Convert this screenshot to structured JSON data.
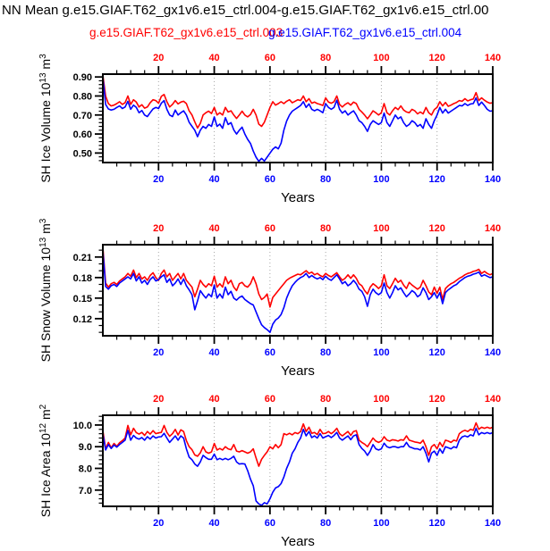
{
  "title": "NN Mean g.e15.GIAF.T62_gx1v6.e15_ctrl.004-g.e15.GIAF.T62_gx1v6.e15_ctrl.00",
  "legend": {
    "position": "top",
    "entries": [
      {
        "label": "g.e15.GIAF.T62_gx1v6.e15_ctrl.003",
        "color": "#ff0000"
      },
      {
        "label": "g.e15.GIAF.T62_gx1v6.e15_ctrl.004",
        "color": "#0000ff"
      }
    ]
  },
  "colors": {
    "frame": "#000000",
    "grid": "#a6a6a6",
    "top_axis_labels": "#ff0000",
    "bottom_axis_labels": "#0000ff"
  },
  "chart_data": [
    {
      "type": "line",
      "title": "",
      "xlabel": "Years",
      "ylabel": "SH Ice Volume 10^13 m^3",
      "ylabel_segments": [
        {
          "t": "SH Ice Volume 10"
        },
        {
          "t": "13",
          "sup": true
        },
        {
          "t": " m"
        },
        {
          "t": "3",
          "sup": true
        }
      ],
      "xlim": [
        0,
        140
      ],
      "ylim": [
        0.45,
        0.915
      ],
      "x_ticks": [
        20,
        40,
        60,
        80,
        100,
        120,
        140
      ],
      "x_minor_step": 5,
      "grid_x": [
        20,
        40,
        60,
        80,
        100,
        120
      ],
      "y_ticks": [
        0.5,
        0.6,
        0.7,
        0.8,
        0.9
      ],
      "y_tick_labels": [
        "0.50",
        "0.60",
        "0.70",
        "0.80",
        "0.90"
      ],
      "y_minor_step": 0.02,
      "grid": "x-dotted",
      "series": [
        {
          "name": "g.e15.GIAF.T62_gx1v6.e15_ctrl.003",
          "color": "#ff0000",
          "x_start": 0,
          "x_step": 1,
          "y": [
            0.91,
            0.8,
            0.76,
            0.748,
            0.752,
            0.76,
            0.77,
            0.756,
            0.765,
            0.8,
            0.756,
            0.78,
            0.768,
            0.742,
            0.754,
            0.736,
            0.742,
            0.764,
            0.78,
            0.776,
            0.762,
            0.798,
            0.808,
            0.77,
            0.742,
            0.756,
            0.776,
            0.758,
            0.768,
            0.772,
            0.76,
            0.722,
            0.7,
            0.664,
            0.632,
            0.656,
            0.7,
            0.712,
            0.72,
            0.708,
            0.74,
            0.7,
            0.712,
            0.7,
            0.74,
            0.716,
            0.722,
            0.7,
            0.682,
            0.7,
            0.72,
            0.7,
            0.69,
            0.702,
            0.73,
            0.7,
            0.652,
            0.64,
            0.662,
            0.7,
            0.74,
            0.77,
            0.752,
            0.76,
            0.77,
            0.76,
            0.772,
            0.78,
            0.764,
            0.772,
            0.78,
            0.776,
            0.8,
            0.77,
            0.786,
            0.762,
            0.768,
            0.76,
            0.756,
            0.75,
            0.79,
            0.768,
            0.762,
            0.77,
            0.8,
            0.756,
            0.742,
            0.756,
            0.764,
            0.752,
            0.768,
            0.76,
            0.73,
            0.716,
            0.7,
            0.68,
            0.7,
            0.722,
            0.712,
            0.7,
            0.712,
            0.76,
            0.712,
            0.7,
            0.722,
            0.74,
            0.728,
            0.748,
            0.726,
            0.716,
            0.712,
            0.73,
            0.722,
            0.706,
            0.716,
            0.706,
            0.74,
            0.712,
            0.7,
            0.728,
            0.74,
            0.77,
            0.748,
            0.766,
            0.746,
            0.752,
            0.76,
            0.766,
            0.776,
            0.772,
            0.786,
            0.774,
            0.78,
            0.784,
            0.818,
            0.776,
            0.79,
            0.778,
            0.768,
            0.762,
            0.764
          ]
        },
        {
          "name": "g.e15.GIAF.T62_gx1v6.e15_ctrl.004",
          "color": "#0000ff",
          "x_start": 0,
          "x_step": 1,
          "y": [
            0.9,
            0.756,
            0.732,
            0.726,
            0.73,
            0.74,
            0.748,
            0.734,
            0.742,
            0.772,
            0.73,
            0.752,
            0.74,
            0.712,
            0.724,
            0.7,
            0.692,
            0.712,
            0.732,
            0.74,
            0.734,
            0.762,
            0.776,
            0.73,
            0.7,
            0.692,
            0.726,
            0.7,
            0.712,
            0.722,
            0.7,
            0.662,
            0.64,
            0.62,
            0.586,
            0.62,
            0.64,
            0.63,
            0.65,
            0.64,
            0.69,
            0.64,
            0.652,
            0.63,
            0.686,
            0.65,
            0.66,
            0.622,
            0.6,
            0.62,
            0.636,
            0.6,
            0.572,
            0.55,
            0.51,
            0.478,
            0.456,
            0.472,
            0.458,
            0.478,
            0.5,
            0.52,
            0.532,
            0.522,
            0.552,
            0.62,
            0.668,
            0.7,
            0.72,
            0.73,
            0.74,
            0.75,
            0.77,
            0.74,
            0.758,
            0.73,
            0.722,
            0.73,
            0.722,
            0.712,
            0.76,
            0.74,
            0.73,
            0.74,
            0.778,
            0.73,
            0.71,
            0.722,
            0.7,
            0.712,
            0.722,
            0.7,
            0.67,
            0.66,
            0.64,
            0.614,
            0.65,
            0.67,
            0.66,
            0.65,
            0.66,
            0.71,
            0.66,
            0.64,
            0.67,
            0.7,
            0.68,
            0.69,
            0.66,
            0.64,
            0.65,
            0.67,
            0.66,
            0.64,
            0.65,
            0.63,
            0.68,
            0.65,
            0.63,
            0.67,
            0.7,
            0.74,
            0.71,
            0.73,
            0.71,
            0.72,
            0.73,
            0.74,
            0.75,
            0.748,
            0.76,
            0.75,
            0.758,
            0.76,
            0.79,
            0.75,
            0.768,
            0.75,
            0.73,
            0.72,
            0.722
          ]
        }
      ]
    },
    {
      "type": "line",
      "title": "",
      "xlabel": "Years",
      "ylabel": "SH Snow Volume 10^13 m^3",
      "ylabel_segments": [
        {
          "t": "SH Snow Volume 10"
        },
        {
          "t": "13",
          "sup": true
        },
        {
          "t": " m"
        },
        {
          "t": "3",
          "sup": true
        }
      ],
      "xlim": [
        0,
        140
      ],
      "ylim": [
        0.095,
        0.228
      ],
      "x_ticks": [
        20,
        40,
        60,
        80,
        100,
        120,
        140
      ],
      "x_minor_step": 5,
      "grid_x": [
        20,
        40,
        60,
        80,
        100,
        120
      ],
      "y_ticks": [
        0.12,
        0.15,
        0.18,
        0.21
      ],
      "y_tick_labels": [
        "0.12",
        "0.15",
        "0.18",
        "0.21"
      ],
      "y_minor_step": 0.01,
      "grid": "x-dotted",
      "series": [
        {
          "name": "g.e15.GIAF.T62_gx1v6.e15_ctrl.003",
          "color": "#ff0000",
          "x_start": 0,
          "x_step": 1,
          "y": [
            0.225,
            0.172,
            0.166,
            0.171,
            0.173,
            0.17,
            0.175,
            0.178,
            0.181,
            0.186,
            0.182,
            0.191,
            0.18,
            0.186,
            0.178,
            0.181,
            0.176,
            0.183,
            0.187,
            0.18,
            0.176,
            0.186,
            0.191,
            0.181,
            0.186,
            0.176,
            0.181,
            0.186,
            0.178,
            0.186,
            0.176,
            0.171,
            0.166,
            0.152,
            0.163,
            0.176,
            0.17,
            0.166,
            0.171,
            0.168,
            0.182,
            0.166,
            0.171,
            0.166,
            0.181,
            0.171,
            0.176,
            0.166,
            0.161,
            0.171,
            0.173,
            0.168,
            0.166,
            0.171,
            0.181,
            0.171,
            0.156,
            0.148,
            0.151,
            0.156,
            0.137,
            0.151,
            0.156,
            0.161,
            0.166,
            0.171,
            0.176,
            0.179,
            0.181,
            0.183,
            0.185,
            0.184,
            0.187,
            0.19,
            0.186,
            0.188,
            0.184,
            0.186,
            0.183,
            0.181,
            0.186,
            0.183,
            0.181,
            0.184,
            0.187,
            0.181,
            0.176,
            0.179,
            0.184,
            0.179,
            0.184,
            0.179,
            0.171,
            0.168,
            0.161,
            0.156,
            0.166,
            0.171,
            0.168,
            0.164,
            0.168,
            0.184,
            0.168,
            0.164,
            0.171,
            0.179,
            0.173,
            0.176,
            0.169,
            0.164,
            0.173,
            0.169,
            0.166,
            0.163,
            0.166,
            0.176,
            0.168,
            0.159,
            0.155,
            0.166,
            0.157,
            0.166,
            0.148,
            0.164,
            0.168,
            0.171,
            0.173,
            0.176,
            0.179,
            0.181,
            0.184,
            0.186,
            0.187,
            0.189,
            0.19,
            0.192,
            0.186,
            0.189,
            0.186,
            0.184,
            0.186
          ]
        },
        {
          "name": "g.e15.GIAF.T62_gx1v6.e15_ctrl.004",
          "color": "#0000ff",
          "x_start": 0,
          "x_step": 1,
          "y": [
            0.22,
            0.167,
            0.163,
            0.168,
            0.17,
            0.167,
            0.172,
            0.175,
            0.178,
            0.181,
            0.178,
            0.186,
            0.175,
            0.181,
            0.172,
            0.176,
            0.17,
            0.177,
            0.181,
            0.175,
            0.177,
            0.181,
            0.184,
            0.173,
            0.178,
            0.168,
            0.172,
            0.178,
            0.17,
            0.178,
            0.168,
            0.162,
            0.155,
            0.133,
            0.146,
            0.161,
            0.155,
            0.15,
            0.156,
            0.152,
            0.169,
            0.15,
            0.156,
            0.15,
            0.166,
            0.155,
            0.16,
            0.15,
            0.147,
            0.151,
            0.153,
            0.148,
            0.145,
            0.142,
            0.14,
            0.13,
            0.12,
            0.111,
            0.107,
            0.104,
            0.1,
            0.112,
            0.118,
            0.121,
            0.126,
            0.136,
            0.15,
            0.16,
            0.168,
            0.173,
            0.177,
            0.18,
            0.182,
            0.186,
            0.18,
            0.183,
            0.18,
            0.178,
            0.18,
            0.177,
            0.182,
            0.178,
            0.176,
            0.18,
            0.184,
            0.178,
            0.171,
            0.174,
            0.168,
            0.171,
            0.176,
            0.171,
            0.163,
            0.16,
            0.152,
            0.138,
            0.155,
            0.163,
            0.158,
            0.155,
            0.158,
            0.172,
            0.158,
            0.15,
            0.158,
            0.168,
            0.162,
            0.165,
            0.158,
            0.152,
            0.156,
            0.161,
            0.158,
            0.152,
            0.155,
            0.165,
            0.158,
            0.148,
            0.152,
            0.158,
            0.15,
            0.158,
            0.142,
            0.158,
            0.162,
            0.165,
            0.168,
            0.17,
            0.174,
            0.177,
            0.18,
            0.182,
            0.183,
            0.185,
            0.186,
            0.188,
            0.182,
            0.184,
            0.182,
            0.18,
            0.181
          ]
        }
      ]
    },
    {
      "type": "line",
      "title": "",
      "xlabel": "Years",
      "ylabel": "SH Ice Area 10^12 m^2",
      "ylabel_segments": [
        {
          "t": "SH Ice Area 10"
        },
        {
          "t": "12",
          "sup": true
        },
        {
          "t": " m"
        },
        {
          "t": "2",
          "sup": true
        }
      ],
      "xlim": [
        0,
        140
      ],
      "ylim": [
        6.25,
        10.45
      ],
      "x_ticks": [
        20,
        40,
        60,
        80,
        100,
        120,
        140
      ],
      "x_minor_step": 5,
      "grid_x": [
        20,
        40,
        60,
        80,
        100,
        120
      ],
      "y_ticks": [
        7,
        8,
        9,
        10
      ],
      "y_tick_labels": [
        "7.0",
        "8.0",
        "9.0",
        "10.0"
      ],
      "y_minor_step": 0.2,
      "grid": "x-dotted",
      "series": [
        {
          "name": "g.e15.GIAF.T62_gx1v6.e15_ctrl.003",
          "color": "#ff0000",
          "x_start": 0,
          "x_step": 1,
          "y": [
            9.75,
            8.9,
            9.2,
            8.95,
            9.15,
            9.02,
            9.18,
            9.28,
            9.4,
            9.98,
            9.55,
            9.85,
            9.65,
            9.58,
            9.66,
            9.52,
            9.7,
            9.58,
            9.74,
            9.6,
            9.64,
            9.66,
            9.98,
            9.66,
            9.48,
            9.6,
            9.8,
            9.54,
            9.78,
            9.7,
            9.28,
            9.0,
            8.86,
            8.62,
            8.56,
            8.72,
            9.0,
            8.76,
            8.7,
            8.76,
            9.15,
            8.85,
            8.92,
            8.85,
            9.0,
            8.9,
            8.86,
            9.1,
            8.8,
            8.76,
            8.82,
            8.76,
            8.7,
            8.76,
            8.9,
            8.48,
            8.1,
            8.42,
            8.6,
            8.76,
            9.0,
            8.9,
            9.1,
            8.95,
            9.1,
            9.6,
            9.55,
            9.62,
            9.55,
            9.65,
            9.6,
            9.7,
            10.05,
            9.7,
            9.9,
            9.62,
            9.66,
            9.56,
            9.8,
            9.6,
            9.62,
            9.7,
            9.6,
            9.7,
            9.85,
            9.6,
            9.5,
            9.6,
            9.7,
            9.52,
            9.7,
            9.74,
            9.3,
            9.2,
            9.12,
            9.0,
            9.2,
            9.4,
            9.26,
            9.2,
            9.26,
            9.46,
            9.3,
            9.26,
            9.32,
            9.3,
            9.26,
            9.32,
            9.3,
            9.5,
            9.3,
            9.26,
            9.22,
            9.2,
            9.16,
            9.3,
            9.0,
            8.6,
            9.0,
            9.1,
            8.9,
            9.2,
            9.0,
            9.3,
            9.26,
            9.2,
            9.3,
            9.26,
            9.6,
            9.7,
            9.76,
            9.7,
            9.8,
            9.76,
            10.1,
            9.8,
            9.9,
            9.85,
            9.9,
            9.85,
            9.9
          ]
        },
        {
          "name": "g.e15.GIAF.T62_gx1v6.e15_ctrl.004",
          "color": "#0000ff",
          "x_start": 0,
          "x_step": 1,
          "y": [
            9.6,
            8.85,
            9.1,
            8.92,
            9.08,
            8.98,
            9.1,
            9.2,
            9.3,
            9.75,
            9.3,
            9.52,
            9.4,
            9.35,
            9.42,
            9.3,
            9.46,
            9.35,
            9.5,
            9.4,
            9.45,
            9.46,
            9.62,
            9.4,
            9.2,
            9.35,
            9.5,
            9.3,
            9.5,
            9.4,
            8.9,
            8.52,
            8.4,
            8.2,
            8.1,
            8.3,
            8.6,
            8.5,
            8.42,
            8.42,
            8.66,
            8.4,
            8.46,
            8.4,
            8.46,
            8.4,
            8.46,
            8.56,
            8.3,
            8.2,
            8.22,
            8.2,
            7.9,
            7.5,
            7.2,
            6.5,
            6.36,
            6.3,
            6.42,
            6.36,
            6.6,
            6.9,
            7.1,
            7.16,
            7.3,
            7.6,
            8.0,
            8.3,
            8.7,
            8.9,
            9.2,
            9.4,
            9.8,
            9.5,
            9.7,
            9.42,
            9.5,
            9.4,
            9.6,
            9.4,
            9.46,
            9.52,
            9.42,
            9.52,
            9.66,
            9.4,
            9.3,
            9.4,
            9.5,
            9.32,
            9.5,
            9.55,
            9.1,
            8.92,
            8.8,
            8.6,
            8.8,
            9.1,
            8.9,
            8.85,
            8.9,
            9.16,
            9.0,
            8.95,
            9.0,
            9.0,
            8.95,
            9.0,
            9.0,
            9.2,
            9.0,
            8.95,
            8.9,
            8.9,
            8.85,
            9.0,
            8.7,
            8.3,
            8.7,
            8.8,
            8.6,
            8.9,
            8.7,
            9.0,
            8.95,
            8.9,
            9.0,
            8.95,
            9.3,
            9.45,
            9.5,
            9.45,
            9.55,
            9.5,
            9.85,
            9.55,
            9.65,
            9.6,
            9.65,
            9.6,
            9.65
          ]
        }
      ]
    }
  ]
}
